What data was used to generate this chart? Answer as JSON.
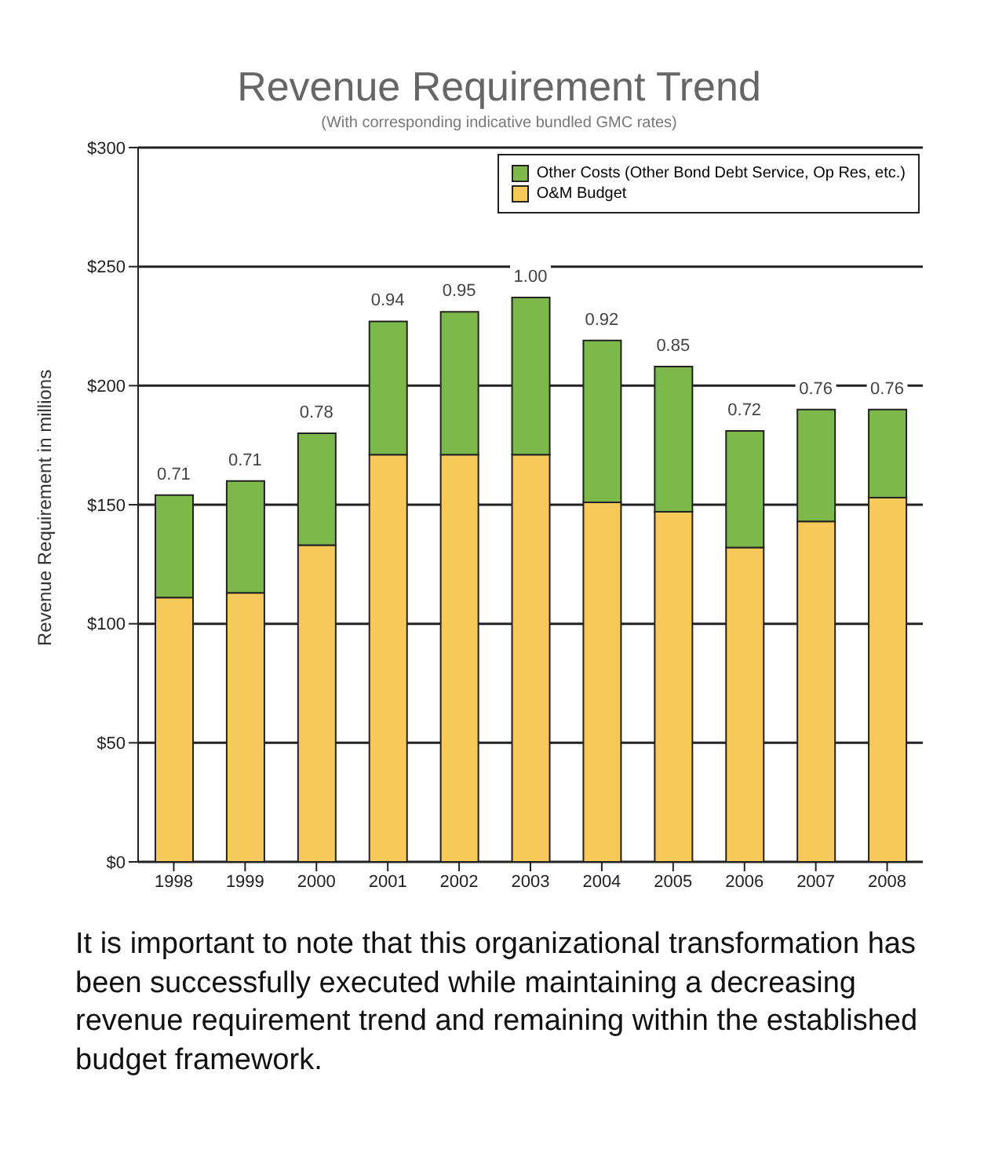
{
  "chart_data": {
    "type": "bar",
    "title": "Revenue Requirement Trend",
    "subtitle": "(With corresponding indicative bundled GMC rates)",
    "ylabel": "Revenue Requirement in millions",
    "categories": [
      "1998",
      "1999",
      "2000",
      "2001",
      "2002",
      "2003",
      "2004",
      "2005",
      "2006",
      "2007",
      "2008"
    ],
    "stacked": true,
    "series": [
      {
        "name": "O&M Budget",
        "color": "#f7c95a",
        "values": [
          111,
          113,
          133,
          171,
          171,
          171,
          151,
          147,
          132,
          143,
          153
        ]
      },
      {
        "name": "Other Costs (Other Bond Debt Service, Op Res, etc.)",
        "color": "#7cb84a",
        "values": [
          43,
          47,
          47,
          56,
          60,
          66,
          68,
          61,
          49,
          47,
          37
        ]
      }
    ],
    "ylim": [
      0,
      300
    ],
    "yticks": [
      {
        "value": 0,
        "label": "$0"
      },
      {
        "value": 50,
        "label": "$50"
      },
      {
        "value": 100,
        "label": "$100"
      },
      {
        "value": 150,
        "label": "$150"
      },
      {
        "value": 200,
        "label": "$200"
      },
      {
        "value": 250,
        "label": "$250"
      },
      {
        "value": 300,
        "label": "$300"
      }
    ],
    "grid": "y",
    "legend": "top right",
    "annotations": [
      {
        "text": "0.71",
        "x": "1998",
        "y": 154
      },
      {
        "text": "0.71",
        "x": "1999",
        "y": 160
      },
      {
        "text": "0.78",
        "x": "2000",
        "y": 180
      },
      {
        "text": "0.94",
        "x": "2001",
        "y": 227
      },
      {
        "text": "0.95",
        "x": "2002",
        "y": 231
      },
      {
        "text": "1.00",
        "x": "2003",
        "y": 237
      },
      {
        "text": "0.92",
        "x": "2004",
        "y": 219
      },
      {
        "text": "0.85",
        "x": "2005",
        "y": 208
      },
      {
        "text": "0.72",
        "x": "2006",
        "y": 181
      },
      {
        "text": "0.76",
        "x": "2007",
        "y": 190
      },
      {
        "text": "0.76",
        "x": "2008",
        "y": 190
      },
      "It is important to note that this organizational transformation has been successfully executed while maintaining a decreasing revenue requirement trend and remaining within the established budget framework."
    ]
  }
}
